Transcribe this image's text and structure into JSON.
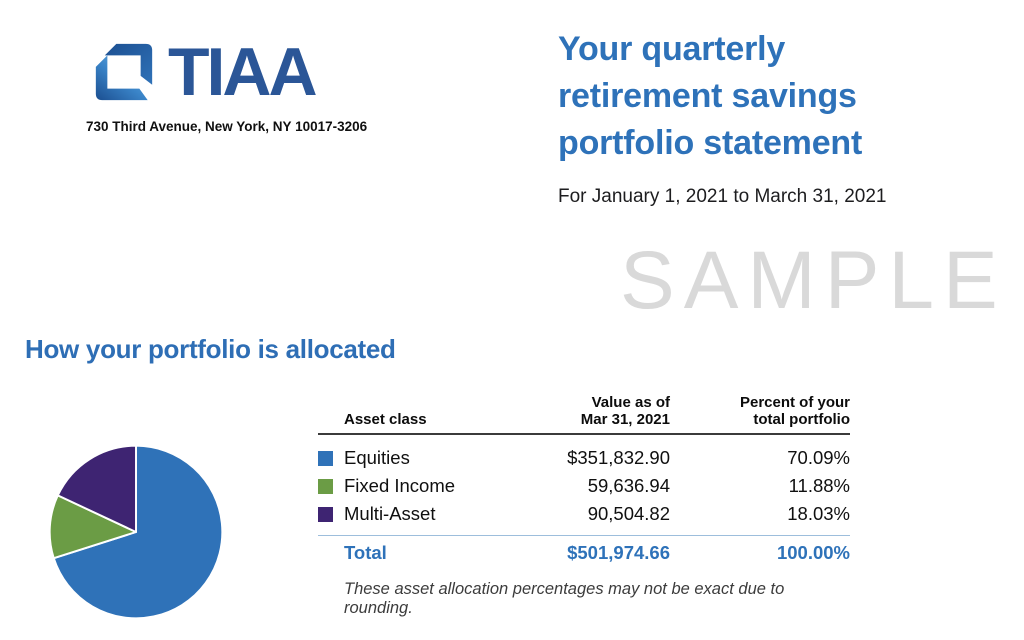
{
  "header": {
    "logo_text": "TIAA",
    "address": "730 Third Avenue, New York, NY 10017-3206",
    "title_lines": [
      "Your quarterly",
      "retirement savings",
      "portfolio statement"
    ],
    "period": "For January 1, 2021 to March 31, 2021"
  },
  "watermark": "SAMPLE",
  "section_heading": "How your portfolio is allocated",
  "table": {
    "col_asset": "Asset class",
    "col_value_line1": "Value as of",
    "col_value_line2": "Mar 31, 2021",
    "col_percent_line1": "Percent of your",
    "col_percent_line2": "total portfolio"
  },
  "chart_data": {
    "type": "pie",
    "title": "How your portfolio is allocated",
    "start_angle_deg": 0,
    "direction": "clockwise-from-12-oclock",
    "legend_position": "table-right-of-pie",
    "segments": [
      {
        "label": "Equities",
        "value": 351832.9,
        "display_value": "$351,832.90",
        "percent": 70.09,
        "display_percent": "70.09%",
        "color": "#2f72b8"
      },
      {
        "label": "Fixed Income",
        "value": 59636.94,
        "display_value": "59,636.94",
        "percent": 11.88,
        "display_percent": "11.88%",
        "color": "#6b9c45"
      },
      {
        "label": "Multi-Asset",
        "value": 90504.82,
        "display_value": "90,504.82",
        "percent": 18.03,
        "display_percent": "18.03%",
        "color": "#3e2472"
      }
    ],
    "total": {
      "label": "Total",
      "value": 501974.66,
      "display_value": "$501,974.66",
      "display_percent": "100.00%"
    }
  },
  "footnote": "These asset allocation percentages may not be exact due to rounding.",
  "colors": {
    "brand_navy": "#2b5697",
    "accent_blue": "#2e72b9",
    "watermark_gray": "#d9d9d9",
    "header_rule": "#3b3b3b",
    "total_rule": "#9dbedc",
    "body_text": "#101010",
    "footnote_text": "#3c3c3c"
  }
}
